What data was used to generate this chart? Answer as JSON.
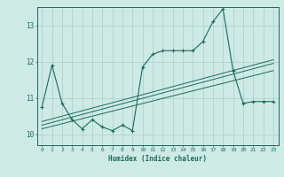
{
  "xlabel": "Humidex (Indice chaleur)",
  "xlim": [
    -0.5,
    23.5
  ],
  "ylim": [
    9.7,
    13.5
  ],
  "yticks": [
    10,
    11,
    12,
    13
  ],
  "xtick_labels": [
    "0",
    "1",
    "2",
    "3",
    "4",
    "5",
    "6",
    "7",
    "8",
    "9",
    "10",
    "11",
    "12",
    "13",
    "14",
    "15",
    "16",
    "17",
    "18",
    "19",
    "20",
    "21",
    "22",
    "23"
  ],
  "bg_color": "#ceeae4",
  "grid_color": "#aed4cc",
  "line_color": "#1a6b5e",
  "main_x": [
    0,
    1,
    2,
    3,
    4,
    5,
    6,
    7,
    8,
    9,
    10,
    11,
    12,
    13,
    14,
    15,
    16,
    17,
    18,
    19,
    20,
    21,
    22,
    23
  ],
  "main_y": [
    10.75,
    11.9,
    10.85,
    10.4,
    10.15,
    10.4,
    10.2,
    10.1,
    10.25,
    10.1,
    11.85,
    12.2,
    12.3,
    12.3,
    12.3,
    12.3,
    12.55,
    13.1,
    13.45,
    11.75,
    10.85,
    10.9,
    10.9,
    10.9
  ],
  "line1_x": [
    0,
    23
  ],
  "line1_y": [
    10.25,
    11.95
  ],
  "line2_x": [
    0,
    23
  ],
  "line2_y": [
    10.35,
    12.05
  ],
  "line3_x": [
    0,
    23
  ],
  "line3_y": [
    10.15,
    11.75
  ]
}
